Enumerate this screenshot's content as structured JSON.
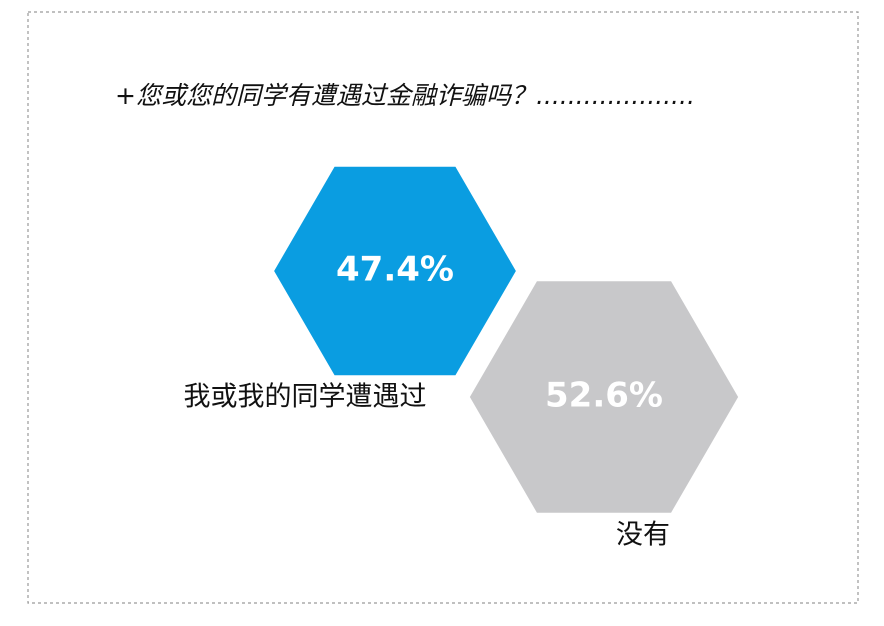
{
  "chart_data": {
    "type": "hexagon",
    "title": "+您或您的同学有遭遇过金融诈骗吗？....................",
    "categories": [
      "我或我的同学遭遇过",
      "没有"
    ],
    "values": [
      47.4,
      52.6
    ],
    "value_labels": [
      "47.4%",
      "52.6%"
    ],
    "colors": [
      "#0a9de1",
      "#c8c8ca"
    ]
  }
}
